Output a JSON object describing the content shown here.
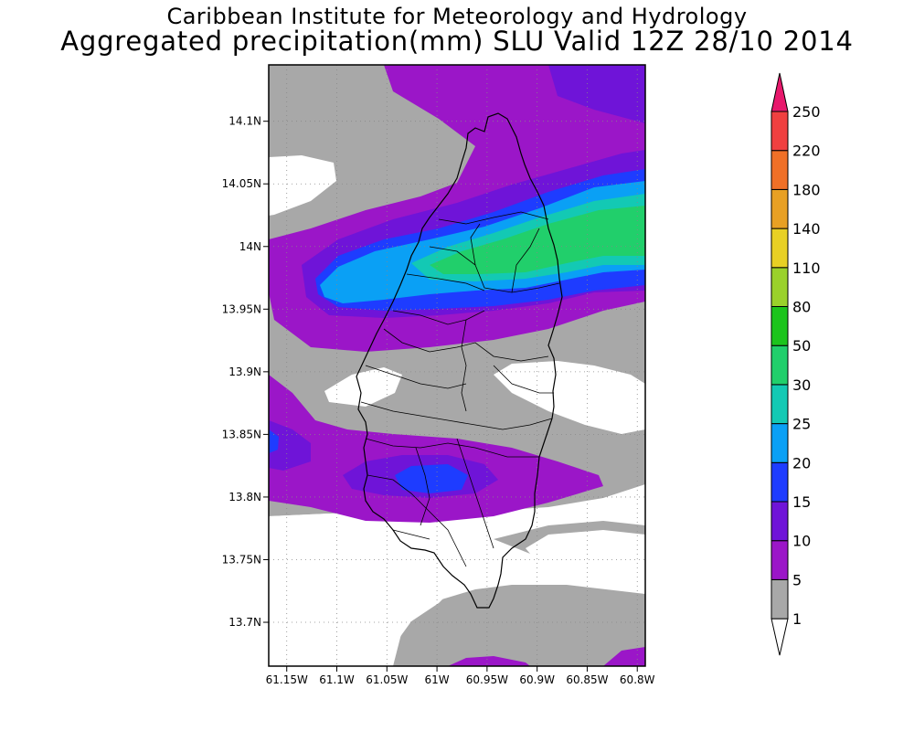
{
  "header": {
    "title_line1": "Caribbean Institute for Meteorology and Hydrology",
    "title_line2": "Aggregated precipitation(mm) SLU Valid 12Z 28/10 2014"
  },
  "map": {
    "lat_ticks": [
      {
        "value": 14.1,
        "label": "14.1N"
      },
      {
        "value": 14.05,
        "label": "14.05N"
      },
      {
        "value": 14.0,
        "label": "14N"
      },
      {
        "value": 13.95,
        "label": "13.95N"
      },
      {
        "value": 13.9,
        "label": "13.9N"
      },
      {
        "value": 13.85,
        "label": "13.85N"
      },
      {
        "value": 13.8,
        "label": "13.8N"
      },
      {
        "value": 13.75,
        "label": "13.75N"
      },
      {
        "value": 13.7,
        "label": "13.7N"
      }
    ],
    "lon_ticks": [
      {
        "value": -61.15,
        "label": "61.15W"
      },
      {
        "value": -61.1,
        "label": "61.1W"
      },
      {
        "value": -61.05,
        "label": "61.05W"
      },
      {
        "value": -61.0,
        "label": "61W"
      },
      {
        "value": -60.95,
        "label": "60.95W"
      },
      {
        "value": -60.9,
        "label": "60.9W"
      },
      {
        "value": -60.85,
        "label": "60.85W"
      },
      {
        "value": -60.8,
        "label": "60.8W"
      }
    ],
    "lat_range": [
      13.665,
      14.145
    ],
    "lon_range": [
      -61.168,
      -60.792
    ],
    "gridlines": true
  },
  "colorbar": {
    "levels": [
      "1",
      "5",
      "10",
      "15",
      "20",
      "25",
      "30",
      "50",
      "80",
      "110",
      "140",
      "180",
      "220",
      "250"
    ],
    "colors": [
      "#ffffff",
      "#a8a8a8",
      "#9b16c8",
      "#6f14d8",
      "#1e3cff",
      "#0aa0f5",
      "#13c9b4",
      "#21cf6b",
      "#1cc41c",
      "#9ad12b",
      "#e8d024",
      "#e8a024",
      "#f07027",
      "#f04040",
      "#e8186c"
    ]
  }
}
